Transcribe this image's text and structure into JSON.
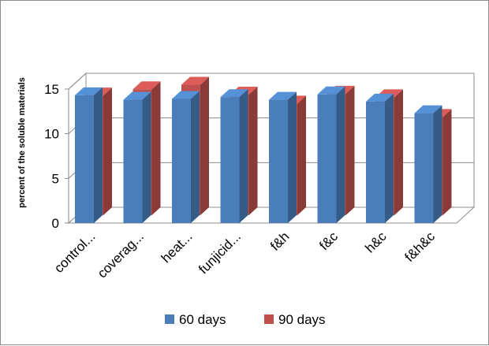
{
  "chart_data": {
    "type": "bar",
    "style": "3d-clustered-column",
    "title": "",
    "xlabel": "",
    "ylabel": "percent of the soluble materials",
    "ylim": [
      0,
      15
    ],
    "yticks": [
      "0",
      "5",
      "10",
      "15"
    ],
    "categories": [
      "control...",
      "coverag...",
      "heat...",
      "funjicid...",
      "f&h",
      "f&c",
      "h&c",
      "f&h&c"
    ],
    "series": [
      {
        "name": "60 days",
        "color": "#4a7ebb",
        "values": [
          14.3,
          13.8,
          13.9,
          14.1,
          13.8,
          14.4,
          13.6,
          12.3
        ]
      },
      {
        "name": "90 days",
        "color": "#c0504d",
        "values": [
          13.4,
          14.1,
          14.6,
          13.5,
          12.5,
          13.6,
          13.2,
          11.0
        ]
      }
    ],
    "grid": true,
    "legend_position": "bottom"
  }
}
